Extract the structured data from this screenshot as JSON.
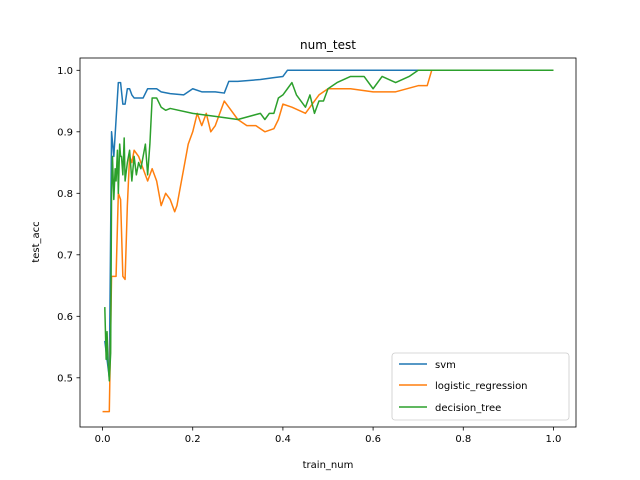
{
  "chart_data": {
    "type": "line",
    "title": "num_test",
    "xlabel": "train_num",
    "ylabel": "test_acc",
    "xlim": [
      -0.05,
      1.05
    ],
    "ylim": [
      0.42,
      1.02
    ],
    "xticks": [
      "0.0",
      "0.2",
      "0.4",
      "0.6",
      "0.8",
      "1.0"
    ],
    "xtick_values": [
      0.0,
      0.2,
      0.4,
      0.6,
      0.8,
      1.0
    ],
    "yticks": [
      "0.5",
      "0.6",
      "0.7",
      "0.8",
      "0.9",
      "1.0"
    ],
    "ytick_values": [
      0.5,
      0.6,
      0.7,
      0.8,
      0.9,
      1.0
    ],
    "grid": false,
    "legend_position": "lower-right",
    "series": [
      {
        "name": "svm",
        "color": "#1f77b4",
        "x": [
          0.005,
          0.01,
          0.015,
          0.02,
          0.025,
          0.03,
          0.035,
          0.04,
          0.045,
          0.05,
          0.055,
          0.06,
          0.065,
          0.07,
          0.08,
          0.09,
          0.1,
          0.11,
          0.12,
          0.13,
          0.15,
          0.18,
          0.2,
          0.22,
          0.25,
          0.27,
          0.28,
          0.3,
          0.35,
          0.38,
          0.4,
          0.41,
          0.42,
          0.5,
          0.6,
          0.7,
          0.8,
          1.0
        ],
        "y": [
          0.56,
          0.53,
          0.5,
          0.9,
          0.86,
          0.92,
          0.98,
          0.98,
          0.945,
          0.945,
          0.97,
          0.97,
          0.96,
          0.955,
          0.955,
          0.955,
          0.97,
          0.97,
          0.97,
          0.965,
          0.962,
          0.96,
          0.97,
          0.965,
          0.965,
          0.963,
          0.982,
          0.982,
          0.985,
          0.988,
          0.99,
          1.0,
          1.0,
          1.0,
          1.0,
          1.0,
          1.0,
          1.0
        ]
      },
      {
        "name": "logistic_regression",
        "color": "#ff7f0e",
        "x": [
          0.0,
          0.01,
          0.015,
          0.02,
          0.025,
          0.03,
          0.035,
          0.04,
          0.045,
          0.05,
          0.055,
          0.06,
          0.065,
          0.07,
          0.08,
          0.09,
          0.1,
          0.105,
          0.11,
          0.12,
          0.13,
          0.14,
          0.15,
          0.16,
          0.165,
          0.17,
          0.18,
          0.19,
          0.2,
          0.21,
          0.22,
          0.23,
          0.24,
          0.25,
          0.27,
          0.28,
          0.3,
          0.32,
          0.34,
          0.36,
          0.38,
          0.39,
          0.4,
          0.42,
          0.45,
          0.48,
          0.5,
          0.55,
          0.6,
          0.65,
          0.7,
          0.72,
          0.73,
          0.8,
          1.0
        ],
        "y": [
          0.445,
          0.445,
          0.445,
          0.665,
          0.665,
          0.665,
          0.8,
          0.79,
          0.665,
          0.66,
          0.78,
          0.86,
          0.85,
          0.87,
          0.86,
          0.84,
          0.82,
          0.83,
          0.84,
          0.82,
          0.78,
          0.8,
          0.79,
          0.77,
          0.78,
          0.8,
          0.84,
          0.88,
          0.9,
          0.93,
          0.91,
          0.93,
          0.9,
          0.91,
          0.95,
          0.94,
          0.92,
          0.91,
          0.91,
          0.9,
          0.905,
          0.92,
          0.945,
          0.94,
          0.93,
          0.96,
          0.97,
          0.97,
          0.965,
          0.965,
          0.975,
          0.975,
          1.0,
          1.0,
          1.0
        ]
      },
      {
        "name": "decision_tree",
        "color": "#2ca02c",
        "x": [
          0.005,
          0.008,
          0.01,
          0.012,
          0.015,
          0.018,
          0.02,
          0.022,
          0.025,
          0.028,
          0.03,
          0.033,
          0.035,
          0.038,
          0.04,
          0.042,
          0.045,
          0.048,
          0.05,
          0.055,
          0.06,
          0.065,
          0.07,
          0.075,
          0.08,
          0.085,
          0.09,
          0.095,
          0.1,
          0.105,
          0.11,
          0.12,
          0.13,
          0.14,
          0.15,
          0.2,
          0.25,
          0.3,
          0.35,
          0.36,
          0.37,
          0.38,
          0.39,
          0.4,
          0.41,
          0.42,
          0.43,
          0.44,
          0.45,
          0.46,
          0.47,
          0.48,
          0.49,
          0.5,
          0.52,
          0.55,
          0.58,
          0.6,
          0.62,
          0.65,
          0.68,
          0.7,
          0.72,
          0.8,
          1.0
        ],
        "y": [
          0.615,
          0.53,
          0.575,
          0.53,
          0.495,
          0.54,
          0.8,
          0.86,
          0.79,
          0.84,
          0.82,
          0.87,
          0.8,
          0.88,
          0.86,
          0.86,
          0.83,
          0.89,
          0.82,
          0.85,
          0.87,
          0.82,
          0.86,
          0.83,
          0.85,
          0.84,
          0.86,
          0.88,
          0.83,
          0.88,
          0.955,
          0.955,
          0.94,
          0.935,
          0.938,
          0.93,
          0.925,
          0.92,
          0.93,
          0.92,
          0.93,
          0.93,
          0.955,
          0.96,
          0.97,
          0.98,
          0.96,
          0.95,
          0.94,
          0.96,
          0.93,
          0.95,
          0.95,
          0.97,
          0.98,
          0.99,
          0.99,
          0.97,
          0.99,
          0.98,
          0.99,
          1.0,
          1.0,
          1.0,
          1.0
        ]
      }
    ]
  }
}
